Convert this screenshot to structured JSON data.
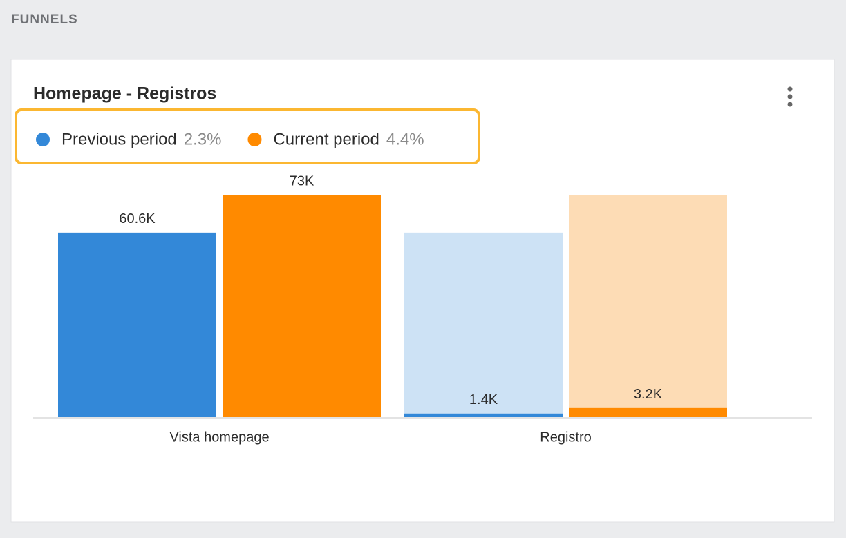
{
  "header": {
    "title": "FUNNELS"
  },
  "chart_data": {
    "type": "funnel-bar",
    "title": "Homepage - Registros",
    "categories": [
      "Vista homepage",
      "Registro"
    ],
    "series": [
      {
        "name": "Previous period",
        "conversion": "2.3%",
        "color": "#3388d8",
        "faded_color": "#cde2f5",
        "values": [
          60600,
          1400
        ],
        "value_labels": [
          "60.6K",
          "1.4K"
        ]
      },
      {
        "name": "Current period",
        "conversion": "4.4%",
        "color": "#ff8a00",
        "faded_color": "#fddcb5",
        "values": [
          73000,
          3200
        ],
        "value_labels": [
          "73K",
          "3.2K"
        ]
      }
    ]
  }
}
